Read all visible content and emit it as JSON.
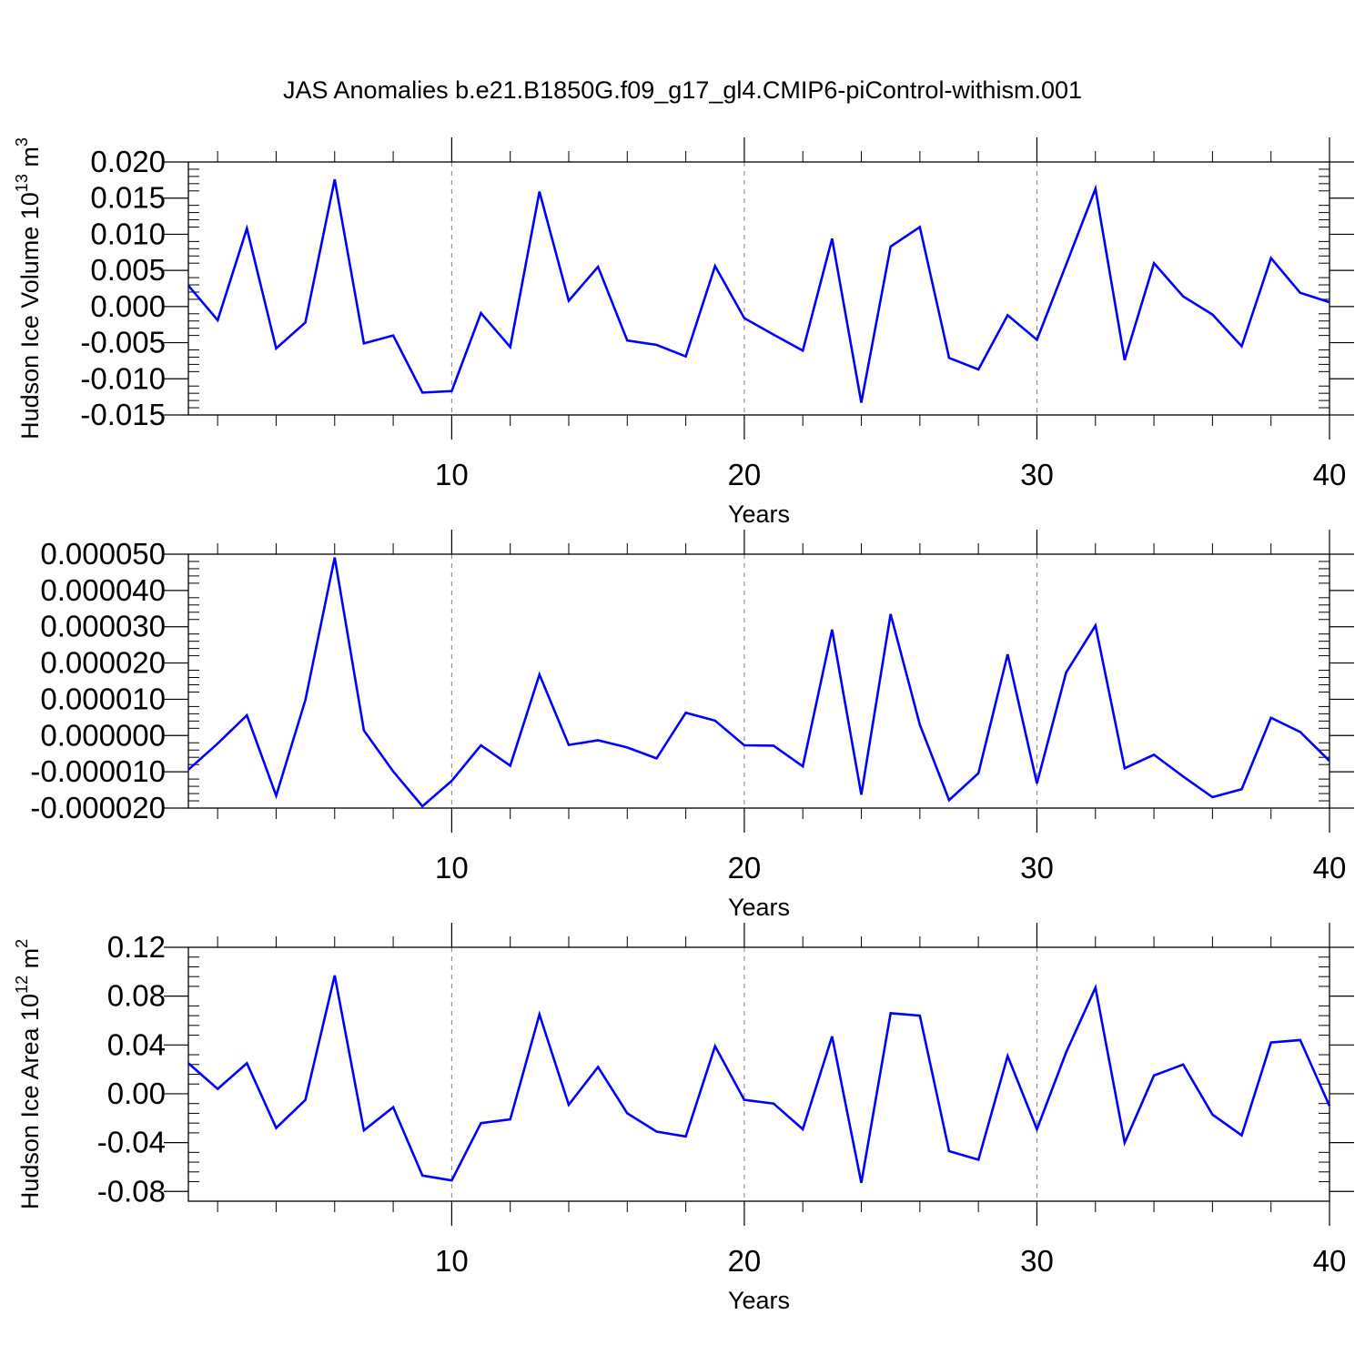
{
  "title": "JAS Anomalies b.e21.B1850G.f09_g17_gl4.CMIP6-piControl-withism.001",
  "colors": {
    "line": "#0000ff",
    "axis": "#000000",
    "grid": "#808080",
    "background": "#ffffff"
  },
  "chart_data": [
    {
      "type": "line",
      "ylabel": {
        "main": "Hudson Ice Volume 10",
        "sup": "13",
        "unit": " m",
        "unit_sup": "3"
      },
      "xlabel": "Years",
      "xlim": [
        1,
        40
      ],
      "ylim": [
        -0.015,
        0.02
      ],
      "yticks": [
        -0.015,
        -0.01,
        -0.005,
        0.0,
        0.005,
        0.01,
        0.015,
        0.02
      ],
      "yticklabels": [
        "-0.015",
        "-0.010",
        "-0.005",
        "0.000",
        "0.005",
        "0.010",
        "0.015",
        "0.020"
      ],
      "xticks": [
        10,
        20,
        30,
        40
      ],
      "xticklabels": [
        "10",
        "20",
        "30",
        "40"
      ],
      "grid": "vertical dashed at x=10,20,30",
      "x": [
        1,
        2,
        3,
        4,
        5,
        6,
        7,
        8,
        9,
        10,
        11,
        12,
        13,
        14,
        15,
        16,
        17,
        18,
        19,
        20,
        21,
        22,
        23,
        24,
        25,
        26,
        27,
        28,
        29,
        30,
        31,
        32,
        33,
        34,
        35,
        36,
        37,
        38,
        39,
        40
      ],
      "series": [
        {
          "values": [
            0.0029,
            -0.0019,
            0.0108,
            -0.0058,
            -0.0022,
            0.0176,
            -0.0051,
            -0.004,
            -0.0119,
            -0.0117,
            -0.0009,
            -0.0056,
            0.0159,
            0.0008,
            0.0055,
            -0.0047,
            -0.0053,
            -0.0069,
            0.0056,
            -0.0016,
            -0.0039,
            -0.0061,
            0.0094,
            -0.0133,
            0.0083,
            0.011,
            -0.0071,
            -0.0087,
            -0.0012,
            -0.0046,
            0.0058,
            0.0163,
            -0.0074,
            0.006,
            0.0014,
            -0.0011,
            -0.0055,
            0.0067,
            0.0019,
            0.0006
          ]
        }
      ]
    },
    {
      "type": "line",
      "xlabel": "Years",
      "xlim": [
        1,
        40
      ],
      "ylim": [
        -2e-05,
        5e-05
      ],
      "yticks": [
        -2e-05,
        -1e-05,
        0.0,
        1e-05,
        2e-05,
        3e-05,
        4e-05,
        5e-05
      ],
      "yticklabels": [
        "-0.000020",
        "-0.000010",
        "0.000000",
        "0.000010",
        "0.000020",
        "0.000030",
        "0.000040",
        "0.000050"
      ],
      "xticks": [
        10,
        20,
        30,
        40
      ],
      "xticklabels": [
        "10",
        "20",
        "30",
        "40"
      ],
      "grid": "vertical dashed at x=10,20,30",
      "x": [
        1,
        2,
        3,
        4,
        5,
        6,
        7,
        8,
        9,
        10,
        11,
        12,
        13,
        14,
        15,
        16,
        17,
        18,
        19,
        20,
        21,
        22,
        23,
        24,
        25,
        26,
        27,
        28,
        29,
        30,
        31,
        32,
        33,
        34,
        35,
        36,
        37,
        38,
        39,
        40
      ],
      "series": [
        {
          "values": [
            -9.4e-06,
            -2.2e-06,
            5.6e-06,
            -1.66e-05,
            9.8e-06,
            4.91e-05,
            1.4e-06,
            -9.9e-06,
            -1.95e-05,
            -1.25e-05,
            -2.7e-06,
            -8.3e-06,
            1.68e-05,
            -2.6e-06,
            -1.3e-06,
            -3.3e-06,
            -6.3e-06,
            6.3e-06,
            4.1e-06,
            -2.7e-06,
            -2.8e-06,
            -8.5e-06,
            2.92e-05,
            -1.63e-05,
            3.35e-05,
            3e-06,
            -1.78e-05,
            -1.04e-05,
            2.24e-05,
            -1.32e-05,
            1.74e-05,
            3.03e-05,
            -9e-06,
            -5.3e-06,
            -1.13e-05,
            -1.7e-05,
            -1.48e-05,
            4.9e-06,
            1e-06,
            -7e-06
          ]
        }
      ]
    },
    {
      "type": "line",
      "ylabel": {
        "main": "Hudson Ice Area 10",
        "sup": "12",
        "unit": " m",
        "unit_sup": "2"
      },
      "xlabel": "Years",
      "xlim": [
        1,
        40
      ],
      "ylim": [
        -0.088,
        0.12
      ],
      "yticks": [
        -0.08,
        -0.04,
        0.0,
        0.04,
        0.08,
        0.12
      ],
      "yticklabels": [
        "-0.08",
        "-0.04",
        "0.00",
        "0.04",
        "0.08",
        "0.12"
      ],
      "xticks": [
        10,
        20,
        30,
        40
      ],
      "xticklabels": [
        "10",
        "20",
        "30",
        "40"
      ],
      "grid": "vertical dashed at x=10,20,30",
      "x": [
        1,
        2,
        3,
        4,
        5,
        6,
        7,
        8,
        9,
        10,
        11,
        12,
        13,
        14,
        15,
        16,
        17,
        18,
        19,
        20,
        21,
        22,
        23,
        24,
        25,
        26,
        27,
        28,
        29,
        30,
        31,
        32,
        33,
        34,
        35,
        36,
        37,
        38,
        39,
        40
      ],
      "series": [
        {
          "values": [
            0.025,
            0.004,
            0.025,
            -0.028,
            -0.005,
            0.097,
            -0.03,
            -0.011,
            -0.067,
            -0.071,
            -0.024,
            -0.021,
            0.065,
            -0.009,
            0.022,
            -0.016,
            -0.031,
            -0.035,
            0.039,
            -0.005,
            -0.008,
            -0.029,
            0.047,
            -0.073,
            0.066,
            0.064,
            -0.047,
            -0.054,
            0.031,
            -0.029,
            0.034,
            0.087,
            -0.04,
            0.015,
            0.024,
            -0.017,
            -0.034,
            0.042,
            0.044,
            -0.01
          ]
        }
      ]
    }
  ]
}
